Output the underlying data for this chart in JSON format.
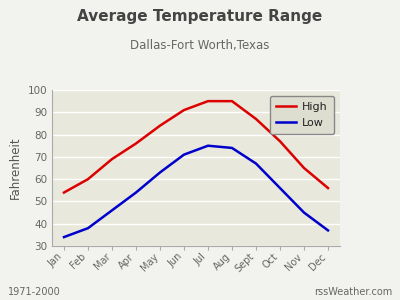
{
  "title": "Average Temperature Range",
  "subtitle": "Dallas-Fort Worth,Texas",
  "ylabel": "Fahrenheit",
  "months": [
    "Jan",
    "Feb",
    "Mar",
    "Apr",
    "May",
    "Jun",
    "Jul",
    "Aug",
    "Sept",
    "Oct",
    "Nov",
    "Dec"
  ],
  "high": [
    54,
    60,
    69,
    76,
    84,
    91,
    95,
    95,
    87,
    77,
    65,
    56
  ],
  "low": [
    34,
    38,
    46,
    54,
    63,
    71,
    75,
    74,
    67,
    56,
    45,
    37
  ],
  "high_color": "#dd0000",
  "low_color": "#0000cc",
  "ylim": [
    30,
    100
  ],
  "yticks": [
    30,
    40,
    50,
    60,
    70,
    80,
    90,
    100
  ],
  "bg_color": "#f2f2ee",
  "plot_bg": "#e8e8dc",
  "legend_bg": "#deded0",
  "footer_left": "1971-2000",
  "footer_right": "rssWeather.com",
  "line_width": 1.8
}
